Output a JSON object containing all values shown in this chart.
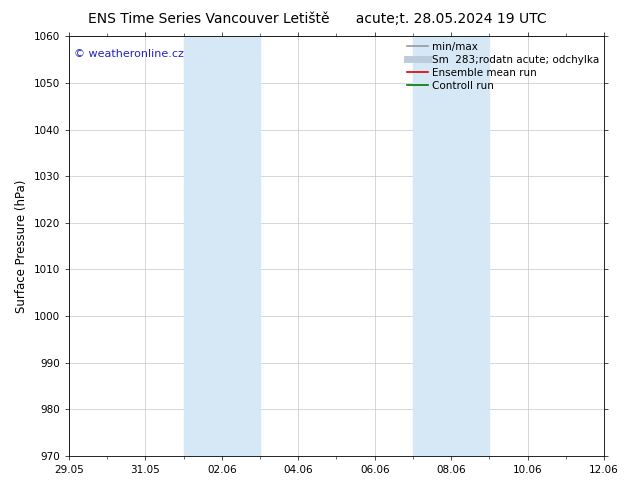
{
  "title_left": "ENS Time Series Vancouver Letiště",
  "title_right": "acute;t. 28.05.2024 19 UTC",
  "ylabel": "Surface Pressure (hPa)",
  "ylim": [
    970,
    1060
  ],
  "yticks": [
    970,
    980,
    990,
    1000,
    1010,
    1020,
    1030,
    1040,
    1050,
    1060
  ],
  "xtick_labels": [
    "29.05",
    "31.05",
    "02.06",
    "04.06",
    "06.06",
    "08.06",
    "10.06",
    "12.06"
  ],
  "xtick_positions": [
    0,
    2,
    4,
    6,
    8,
    10,
    12,
    14
  ],
  "xlim": [
    0,
    14
  ],
  "shade_regions": [
    {
      "start": 3.0,
      "end": 5.0
    },
    {
      "start": 9.0,
      "end": 11.0
    }
  ],
  "shade_color": "#d6e8f5",
  "bg_color": "#ffffff",
  "grid_color": "#c8c8c8",
  "watermark_text": "© weatheronline.cz",
  "watermark_color": "#2222cc",
  "legend_entries": [
    {
      "label": "min/max",
      "color": "#999999",
      "lw": 1.2
    },
    {
      "label": "Sm  283;rodatn acute; odchylka",
      "color": "#bbccdd",
      "lw": 5
    },
    {
      "label": "Ensemble mean run",
      "color": "#dd0000",
      "lw": 1.2
    },
    {
      "label": "Controll run",
      "color": "#007700",
      "lw": 1.2
    }
  ],
  "title_fontsize": 10,
  "tick_fontsize": 7.5,
  "ylabel_fontsize": 8.5,
  "legend_fontsize": 7.5,
  "watermark_fontsize": 8
}
